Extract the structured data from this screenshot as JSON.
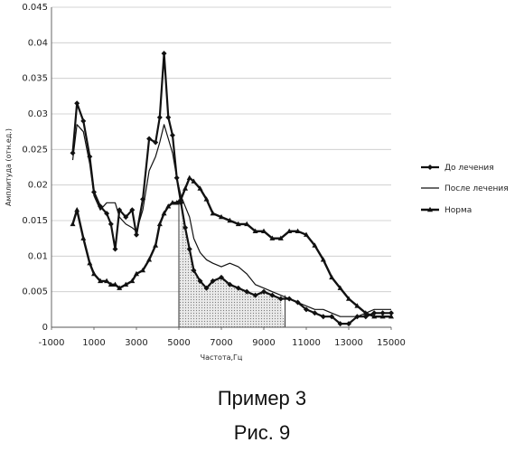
{
  "chart_data": {
    "type": "line",
    "xlabel": "Частота,Гц",
    "ylabel": "Амплитуда (отн.ед.)",
    "xlim": [
      -1000,
      15000
    ],
    "ylim": [
      0,
      0.045
    ],
    "x_tick_labels": [
      "-1000",
      "1000",
      "3000",
      "5000",
      "7000",
      "9000",
      "11000",
      "13000",
      "15000"
    ],
    "y_tick_labels": [
      "0",
      "0.005",
      "0.01",
      "0.015",
      "0.02",
      "0.025",
      "0.03",
      "0.035",
      "0.04",
      "0.045"
    ],
    "grid": "horizontal",
    "legend_position": "right",
    "shaded_region": {
      "x_from": 5000,
      "x_to": 10000
    },
    "series": [
      {
        "name": "До лечения",
        "marker": "diamond",
        "x": [
          0,
          200,
          500,
          800,
          1000,
          1300,
          1600,
          1800,
          2000,
          2200,
          2500,
          2800,
          3000,
          3300,
          3600,
          3900,
          4100,
          4300,
          4500,
          4700,
          4900,
          5100,
          5300,
          5500,
          5700,
          6000,
          6300,
          6600,
          7000,
          7400,
          7800,
          8200,
          8600,
          9000,
          9400,
          9800,
          10200,
          10600,
          11000,
          11400,
          11800,
          12200,
          12600,
          13000,
          13400,
          13800,
          14200,
          14600,
          15000
        ],
        "y": [
          0.0245,
          0.0315,
          0.029,
          0.024,
          0.019,
          0.017,
          0.016,
          0.0145,
          0.011,
          0.0165,
          0.0155,
          0.0165,
          0.013,
          0.018,
          0.0265,
          0.026,
          0.0295,
          0.0385,
          0.0295,
          0.027,
          0.021,
          0.0175,
          0.014,
          0.011,
          0.008,
          0.0065,
          0.0055,
          0.0065,
          0.007,
          0.006,
          0.0055,
          0.005,
          0.0045,
          0.005,
          0.0045,
          0.004,
          0.004,
          0.0035,
          0.0025,
          0.002,
          0.0015,
          0.0015,
          0.0005,
          0.0005,
          0.0015,
          0.0015,
          0.002,
          0.002,
          0.002
        ]
      },
      {
        "name": "После лечения",
        "marker": "none",
        "x": [
          0,
          200,
          500,
          800,
          1000,
          1300,
          1600,
          1800,
          2000,
          2200,
          2500,
          2800,
          3000,
          3300,
          3600,
          3900,
          4100,
          4300,
          4500,
          4700,
          4900,
          5100,
          5300,
          5500,
          5700,
          6000,
          6300,
          6600,
          7000,
          7400,
          7800,
          8200,
          8600,
          9000,
          9400,
          9800,
          10200,
          10600,
          11000,
          11400,
          11800,
          12200,
          12600,
          13000,
          13400,
          13800,
          14200,
          14600,
          15000
        ],
        "y": [
          0.0235,
          0.0285,
          0.0275,
          0.023,
          0.0185,
          0.0165,
          0.0175,
          0.0175,
          0.0175,
          0.0155,
          0.0145,
          0.014,
          0.0135,
          0.0165,
          0.022,
          0.024,
          0.026,
          0.0285,
          0.0265,
          0.0245,
          0.021,
          0.0185,
          0.017,
          0.0155,
          0.0125,
          0.0105,
          0.0095,
          0.009,
          0.0085,
          0.009,
          0.0085,
          0.0075,
          0.006,
          0.0055,
          0.005,
          0.0045,
          0.004,
          0.0035,
          0.003,
          0.0025,
          0.0025,
          0.002,
          0.0015,
          0.0015,
          0.0015,
          0.002,
          0.0025,
          0.0025,
          0.0025
        ]
      },
      {
        "name": "Норма",
        "marker": "triangle",
        "x": [
          0,
          200,
          500,
          800,
          1000,
          1300,
          1600,
          1800,
          2000,
          2200,
          2500,
          2800,
          3000,
          3300,
          3600,
          3900,
          4100,
          4300,
          4500,
          4700,
          4900,
          5100,
          5300,
          5500,
          5700,
          6000,
          6300,
          6600,
          7000,
          7400,
          7800,
          8200,
          8600,
          9000,
          9400,
          9800,
          10200,
          10600,
          11000,
          11400,
          11800,
          12200,
          12600,
          13000,
          13400,
          13800,
          14200,
          14600,
          15000
        ],
        "y": [
          0.0145,
          0.0165,
          0.0125,
          0.009,
          0.0075,
          0.0065,
          0.0065,
          0.006,
          0.006,
          0.0055,
          0.006,
          0.0065,
          0.0075,
          0.008,
          0.0095,
          0.0115,
          0.0145,
          0.016,
          0.017,
          0.0175,
          0.0175,
          0.018,
          0.0195,
          0.021,
          0.0205,
          0.0195,
          0.018,
          0.016,
          0.0155,
          0.015,
          0.0145,
          0.0145,
          0.0135,
          0.0135,
          0.0125,
          0.0125,
          0.0135,
          0.0135,
          0.013,
          0.0115,
          0.0095,
          0.007,
          0.0055,
          0.004,
          0.003,
          0.002,
          0.0015,
          0.0015,
          0.0015
        ]
      }
    ]
  },
  "caption": {
    "line1": "Пример 3",
    "line2": "Рис. 9"
  }
}
